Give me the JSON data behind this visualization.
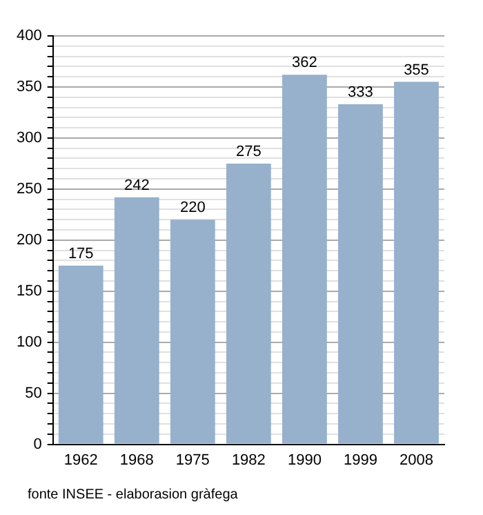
{
  "chart_data": {
    "type": "bar",
    "categories": [
      "1962",
      "1968",
      "1975",
      "1982",
      "1990",
      "1999",
      "2008"
    ],
    "values": [
      175,
      242,
      220,
      275,
      362,
      333,
      355
    ],
    "color": "#97b1cc",
    "data_labels": true,
    "grid": "y",
    "ylim": [
      0,
      400
    ],
    "yticks": [
      0,
      {
        "value": 10,
        "label": null
      },
      {
        "value": 20,
        "label": null
      },
      {
        "value": 30,
        "label": null
      },
      {
        "value": 40,
        "label": null
      },
      50,
      {
        "value": 60,
        "label": null
      },
      {
        "value": 70,
        "label": null
      },
      {
        "value": 80,
        "label": null
      },
      {
        "value": 90,
        "label": null
      },
      100,
      {
        "value": 110,
        "label": null
      },
      {
        "value": 120,
        "label": null
      },
      {
        "value": 130,
        "label": null
      },
      {
        "value": 140,
        "label": null
      },
      150,
      {
        "value": 160,
        "label": null
      },
      {
        "value": 170,
        "label": null
      },
      {
        "value": 180,
        "label": null
      },
      {
        "value": 190,
        "label": null
      },
      200,
      {
        "value": 210,
        "label": null
      },
      {
        "value": 220,
        "label": null
      },
      {
        "value": 230,
        "label": null
      },
      {
        "value": 240,
        "label": null
      },
      250,
      {
        "value": 260,
        "label": null
      },
      {
        "value": 270,
        "label": null
      },
      {
        "value": 280,
        "label": null
      },
      {
        "value": 290,
        "label": null
      },
      300,
      {
        "value": 310,
        "label": null
      },
      {
        "value": 320,
        "label": null
      },
      {
        "value": 330,
        "label": null
      },
      {
        "value": 340,
        "label": null
      },
      350,
      {
        "value": 360,
        "label": null
      },
      {
        "value": 370,
        "label": null
      },
      {
        "value": 380,
        "label": null
      },
      {
        "value": 390,
        "label": null
      },
      400
    ],
    "annotations": [
      "fonte INSEE - elaborasion gràfega"
    ]
  }
}
